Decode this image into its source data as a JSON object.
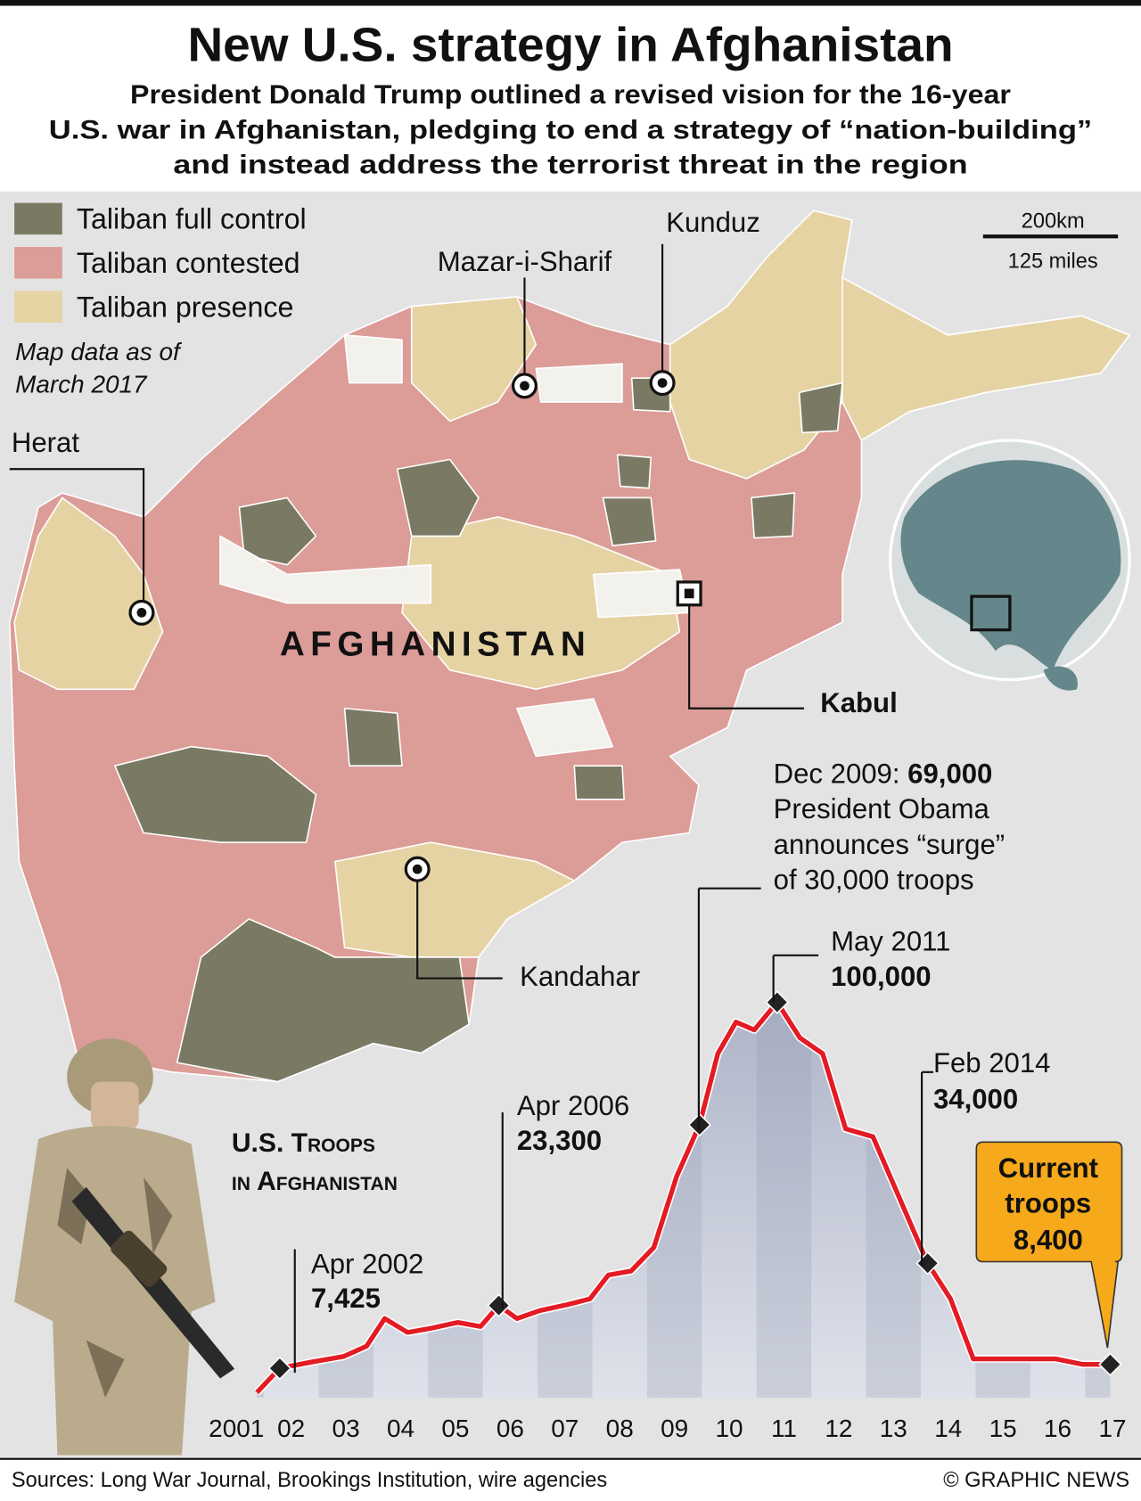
{
  "header": {
    "title": "New U.S. strategy in Afghanistan",
    "subtitle_lines": [
      "President Donald Trump outlined a revised vision for the 16-year",
      "U.S. war in Afghanistan, pledging to end a strategy of “nation-building”",
      "and instead address the terrorist threat in the region"
    ]
  },
  "legend": [
    {
      "label": "Taliban full control",
      "color": "#7a7a64"
    },
    {
      "label": "Taliban contested",
      "color": "#dc9c97"
    },
    {
      "label": "Taliban presence",
      "color": "#e6d3a4"
    }
  ],
  "map_note": [
    "Map data as of",
    "March 2017"
  ],
  "scale": [
    "200km",
    "125 miles"
  ],
  "map_labels": {
    "country": "AFGHANISTAN",
    "cities": [
      "Herat",
      "Mazar-i-Sharif",
      "Kunduz",
      "Kabul",
      "Kandahar"
    ]
  },
  "chart_data": {
    "type": "line",
    "title_lines": [
      "U.S. Troops",
      "in Afghanistan"
    ],
    "color": "#e31b23",
    "x": [
      "2001-11",
      "2002-04",
      "2002-11",
      "2003-06",
      "2003-11",
      "2004-03",
      "2004-08",
      "2005-01",
      "2005-07",
      "2005-12",
      "2006-04",
      "2006-08",
      "2007-01",
      "2007-07",
      "2007-12",
      "2008-04",
      "2008-09",
      "2009-02",
      "2009-07",
      "2009-12",
      "2010-04",
      "2010-08",
      "2010-12",
      "2011-05",
      "2011-10",
      "2012-03",
      "2012-08",
      "2013-02",
      "2013-08",
      "2014-02",
      "2014-07",
      "2014-12",
      "2015-08",
      "2016-06",
      "2016-12",
      "2017-06"
    ],
    "values": [
      1300,
      7425,
      9000,
      10400,
      13000,
      20000,
      16500,
      17500,
      19000,
      18000,
      23300,
      20000,
      22000,
      23500,
      25000,
      31000,
      32000,
      38000,
      56000,
      69000,
      87000,
      95000,
      93000,
      100000,
      91000,
      87000,
      68000,
      66000,
      50000,
      34000,
      25000,
      9800,
      9800,
      9800,
      8400,
      8400
    ],
    "point_labels": [
      null,
      "Apr 2002",
      null,
      null,
      null,
      null,
      null,
      null,
      null,
      null,
      "Apr 2006",
      null,
      null,
      null,
      null,
      null,
      null,
      null,
      null,
      "Dec 2009:",
      null,
      null,
      null,
      "May 2011",
      null,
      null,
      null,
      null,
      null,
      "Feb 2014",
      null,
      null,
      null,
      null,
      null,
      null
    ],
    "value_labels": [
      null,
      "7,425",
      null,
      null,
      null,
      null,
      null,
      null,
      null,
      null,
      "23,300",
      null,
      null,
      null,
      null,
      null,
      null,
      null,
      null,
      "69,000",
      null,
      null,
      null,
      "100,000",
      null,
      null,
      null,
      null,
      null,
      "34,000",
      null,
      null,
      null,
      null,
      null,
      "8,400"
    ],
    "note_lines": [
      "President Obama",
      "announces “surge”",
      "of 30,000 troops"
    ],
    "callout_lines": [
      "Current",
      "troops"
    ],
    "xlim": [
      2001,
      2018
    ],
    "ylim": [
      0,
      100000
    ],
    "xticks": [
      {
        "value": 2001,
        "label": "2001"
      },
      {
        "value": 2002,
        "label": "02"
      },
      {
        "value": 2003,
        "label": "03"
      },
      {
        "value": 2004,
        "label": "04"
      },
      {
        "value": 2005,
        "label": "05"
      },
      {
        "value": 2006,
        "label": "06"
      },
      {
        "value": 2007,
        "label": "07"
      },
      {
        "value": 2008,
        "label": "08"
      },
      {
        "value": 2009,
        "label": "09"
      },
      {
        "value": 2010,
        "label": "10"
      },
      {
        "value": 2011,
        "label": "11"
      },
      {
        "value": 2012,
        "label": "12"
      },
      {
        "value": 2013,
        "label": "13"
      },
      {
        "value": 2014,
        "label": "14"
      },
      {
        "value": 2015,
        "label": "15"
      },
      {
        "value": 2016,
        "label": "16"
      },
      {
        "value": 2017,
        "label": "17"
      }
    ]
  },
  "footer": {
    "sources": "Sources: Long War Journal, Brookings Institution, wire agencies",
    "credit": "© GRAPHIC NEWS"
  }
}
